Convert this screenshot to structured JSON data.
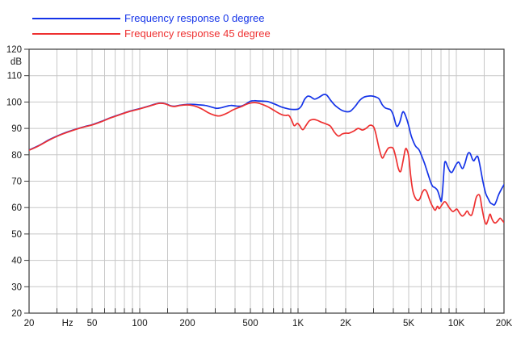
{
  "legend": {
    "items": [
      {
        "label": "Frequency response 0 degree",
        "color": "#1433e8"
      },
      {
        "label": "Frequency response 45 degree",
        "color": "#ee3030"
      }
    ]
  },
  "axes": {
    "y_unit": "dB",
    "x_unit": "Hz",
    "y_ticks": [
      120,
      110,
      100,
      90,
      80,
      70,
      60,
      50,
      40,
      30,
      20
    ],
    "x_labeled_ticks": [
      {
        "f": 20,
        "label": "20"
      },
      {
        "f": 50,
        "label": "50"
      },
      {
        "f": 100,
        "label": "100"
      },
      {
        "f": 200,
        "label": "200"
      },
      {
        "f": 500,
        "label": "500"
      },
      {
        "f": 1000,
        "label": "1K"
      },
      {
        "f": 2000,
        "label": "2K"
      },
      {
        "f": 5000,
        "label": "5K"
      },
      {
        "f": 10000,
        "label": "10K"
      },
      {
        "f": 20000,
        "label": "20K"
      }
    ],
    "x_unit_pos_hz": 35,
    "gridline_freqs": [
      20,
      30,
      40,
      50,
      60,
      70,
      80,
      90,
      100,
      150,
      200,
      300,
      400,
      500,
      600,
      700,
      800,
      900,
      1000,
      1500,
      2000,
      3000,
      4000,
      5000,
      6000,
      7000,
      8000,
      9000,
      10000,
      15000,
      20000
    ]
  },
  "colors": {
    "grid": "#c7c7c7",
    "border": "#3a3a3a",
    "tick": "#3a3a3a",
    "label": "#1a1a1a",
    "background": "#ffffff"
  },
  "chart_data": {
    "type": "line",
    "title": "",
    "xlabel": "Hz",
    "ylabel": "dB",
    "x_scale": "log",
    "xlim": [
      20,
      20000
    ],
    "ylim": [
      20,
      120
    ],
    "grid": true,
    "legend_position": "top-left",
    "series": [
      {
        "name": "Frequency response 0 degree",
        "color": "#1433e8",
        "points": [
          [
            20,
            81.8
          ],
          [
            23,
            83.5
          ],
          [
            27,
            85.8
          ],
          [
            32,
            87.8
          ],
          [
            38,
            89.4
          ],
          [
            45,
            90.7
          ],
          [
            50,
            91.4
          ],
          [
            57,
            92.6
          ],
          [
            65,
            94.0
          ],
          [
            75,
            95.3
          ],
          [
            85,
            96.4
          ],
          [
            100,
            97.5
          ],
          [
            110,
            98.2
          ],
          [
            120,
            98.9
          ],
          [
            128,
            99.4
          ],
          [
            135,
            99.6
          ],
          [
            145,
            99.4
          ],
          [
            155,
            98.7
          ],
          [
            165,
            98.4
          ],
          [
            180,
            98.8
          ],
          [
            200,
            99.1
          ],
          [
            220,
            99.1
          ],
          [
            240,
            98.9
          ],
          [
            260,
            98.7
          ],
          [
            280,
            98.2
          ],
          [
            300,
            97.7
          ],
          [
            310,
            97.6
          ],
          [
            330,
            97.9
          ],
          [
            355,
            98.4
          ],
          [
            375,
            98.7
          ],
          [
            395,
            98.6
          ],
          [
            420,
            98.4
          ],
          [
            440,
            98.5
          ],
          [
            470,
            99.3
          ],
          [
            500,
            100.3
          ],
          [
            530,
            100.5
          ],
          [
            560,
            100.4
          ],
          [
            600,
            100.3
          ],
          [
            640,
            100.2
          ],
          [
            680,
            99.7
          ],
          [
            720,
            99.1
          ],
          [
            780,
            98.2
          ],
          [
            830,
            97.7
          ],
          [
            880,
            97.3
          ],
          [
            930,
            97.2
          ],
          [
            1000,
            97.3
          ],
          [
            1050,
            98.5
          ],
          [
            1100,
            101.0
          ],
          [
            1150,
            102.2
          ],
          [
            1200,
            102.0
          ],
          [
            1270,
            101.1
          ],
          [
            1350,
            101.7
          ],
          [
            1450,
            102.8
          ],
          [
            1520,
            102.6
          ],
          [
            1600,
            100.8
          ],
          [
            1700,
            98.9
          ],
          [
            1800,
            97.7
          ],
          [
            1900,
            96.8
          ],
          [
            2050,
            96.3
          ],
          [
            2150,
            96.6
          ],
          [
            2300,
            98.4
          ],
          [
            2450,
            100.6
          ],
          [
            2600,
            101.8
          ],
          [
            2750,
            102.2
          ],
          [
            2900,
            102.3
          ],
          [
            3100,
            101.9
          ],
          [
            3250,
            101.2
          ],
          [
            3400,
            99.0
          ],
          [
            3550,
            97.8
          ],
          [
            3700,
            97.4
          ],
          [
            3850,
            97.0
          ],
          [
            4000,
            95.0
          ],
          [
            4150,
            91.5
          ],
          [
            4250,
            90.8
          ],
          [
            4400,
            92.5
          ],
          [
            4550,
            95.8
          ],
          [
            4650,
            96.2
          ],
          [
            4800,
            94.5
          ],
          [
            5000,
            91.0
          ],
          [
            5200,
            87.0
          ],
          [
            5500,
            83.5
          ],
          [
            5800,
            82.0
          ],
          [
            6000,
            80.0
          ],
          [
            6300,
            76.7
          ],
          [
            6600,
            73.0
          ],
          [
            6900,
            69.5
          ],
          [
            7100,
            68.0
          ],
          [
            7300,
            67.6
          ],
          [
            7600,
            66.5
          ],
          [
            7900,
            63.5
          ],
          [
            8050,
            62.5
          ],
          [
            8200,
            67.0
          ],
          [
            8400,
            76.0
          ],
          [
            8550,
            77.4
          ],
          [
            8800,
            75.6
          ],
          [
            9100,
            73.8
          ],
          [
            9400,
            73.4
          ],
          [
            9800,
            75.5
          ],
          [
            10100,
            76.8
          ],
          [
            10400,
            77.1
          ],
          [
            10900,
            74.8
          ],
          [
            11300,
            76.5
          ],
          [
            11800,
            80.3
          ],
          [
            12200,
            80.6
          ],
          [
            12600,
            78.5
          ],
          [
            12900,
            77.7
          ],
          [
            13300,
            79.0
          ],
          [
            13700,
            79.2
          ],
          [
            14200,
            75.0
          ],
          [
            14700,
            70.0
          ],
          [
            15300,
            65.5
          ],
          [
            15900,
            63.3
          ],
          [
            16400,
            61.8
          ],
          [
            16900,
            61.3
          ],
          [
            17400,
            61.0
          ],
          [
            17900,
            62.5
          ],
          [
            18500,
            64.9
          ],
          [
            19200,
            66.8
          ],
          [
            20000,
            68.7
          ]
        ]
      },
      {
        "name": "Frequency response 45 degree",
        "color": "#ee3030",
        "points": [
          [
            20,
            81.7
          ],
          [
            23,
            83.4
          ],
          [
            27,
            85.7
          ],
          [
            32,
            87.7
          ],
          [
            38,
            89.3
          ],
          [
            45,
            90.6
          ],
          [
            50,
            91.3
          ],
          [
            57,
            92.5
          ],
          [
            65,
            93.9
          ],
          [
            75,
            95.2
          ],
          [
            85,
            96.3
          ],
          [
            100,
            97.4
          ],
          [
            110,
            98.1
          ],
          [
            120,
            98.8
          ],
          [
            128,
            99.3
          ],
          [
            135,
            99.5
          ],
          [
            145,
            99.3
          ],
          [
            155,
            98.6
          ],
          [
            165,
            98.3
          ],
          [
            180,
            98.7
          ],
          [
            200,
            98.9
          ],
          [
            215,
            98.7
          ],
          [
            230,
            98.2
          ],
          [
            250,
            97.2
          ],
          [
            270,
            96.0
          ],
          [
            290,
            95.2
          ],
          [
            315,
            94.7
          ],
          [
            335,
            95.1
          ],
          [
            360,
            95.9
          ],
          [
            385,
            96.9
          ],
          [
            410,
            97.6
          ],
          [
            440,
            98.3
          ],
          [
            470,
            99.1
          ],
          [
            500,
            99.6
          ],
          [
            530,
            99.8
          ],
          [
            560,
            99.6
          ],
          [
            600,
            99.0
          ],
          [
            640,
            98.3
          ],
          [
            680,
            97.4
          ],
          [
            720,
            96.5
          ],
          [
            760,
            95.7
          ],
          [
            800,
            95.1
          ],
          [
            840,
            94.9
          ],
          [
            870,
            95.0
          ],
          [
            900,
            93.8
          ],
          [
            930,
            91.8
          ],
          [
            950,
            91.0
          ],
          [
            990,
            91.9
          ],
          [
            1020,
            91.2
          ],
          [
            1070,
            89.5
          ],
          [
            1120,
            91.0
          ],
          [
            1180,
            92.9
          ],
          [
            1250,
            93.4
          ],
          [
            1320,
            93.1
          ],
          [
            1400,
            92.4
          ],
          [
            1500,
            91.7
          ],
          [
            1600,
            90.9
          ],
          [
            1700,
            88.5
          ],
          [
            1800,
            87.1
          ],
          [
            1900,
            87.9
          ],
          [
            2000,
            88.2
          ],
          [
            2100,
            88.2
          ],
          [
            2250,
            89.0
          ],
          [
            2400,
            90.0
          ],
          [
            2550,
            89.4
          ],
          [
            2700,
            90.1
          ],
          [
            2850,
            91.2
          ],
          [
            3000,
            90.6
          ],
          [
            3100,
            88.0
          ],
          [
            3250,
            82.5
          ],
          [
            3400,
            78.8
          ],
          [
            3550,
            80.5
          ],
          [
            3700,
            82.4
          ],
          [
            3850,
            82.8
          ],
          [
            4000,
            82.3
          ],
          [
            4150,
            79.0
          ],
          [
            4300,
            74.8
          ],
          [
            4450,
            73.7
          ],
          [
            4600,
            77.5
          ],
          [
            4750,
            81.8
          ],
          [
            4850,
            82.2
          ],
          [
            5000,
            79.5
          ],
          [
            5150,
            72.0
          ],
          [
            5300,
            66.5
          ],
          [
            5450,
            64.2
          ],
          [
            5600,
            63.0
          ],
          [
            5750,
            62.7
          ],
          [
            5900,
            63.5
          ],
          [
            6100,
            65.8
          ],
          [
            6300,
            66.8
          ],
          [
            6500,
            66.0
          ],
          [
            6700,
            63.8
          ],
          [
            6900,
            61.8
          ],
          [
            7100,
            60.3
          ],
          [
            7350,
            59.0
          ],
          [
            7600,
            60.5
          ],
          [
            7800,
            59.6
          ],
          [
            8100,
            61.0
          ],
          [
            8400,
            62.2
          ],
          [
            8600,
            61.9
          ],
          [
            8900,
            60.5
          ],
          [
            9200,
            59.3
          ],
          [
            9500,
            58.5
          ],
          [
            9800,
            59.0
          ],
          [
            10100,
            59.4
          ],
          [
            10500,
            57.8
          ],
          [
            10900,
            56.8
          ],
          [
            11300,
            57.5
          ],
          [
            11700,
            58.7
          ],
          [
            12100,
            57.4
          ],
          [
            12500,
            57.2
          ],
          [
            12900,
            60.0
          ],
          [
            13300,
            63.5
          ],
          [
            13700,
            64.8
          ],
          [
            14100,
            64.3
          ],
          [
            14500,
            60.0
          ],
          [
            15000,
            55.5
          ],
          [
            15400,
            53.7
          ],
          [
            15800,
            55.0
          ],
          [
            16300,
            57.5
          ],
          [
            16700,
            56.0
          ],
          [
            17200,
            54.5
          ],
          [
            17700,
            54.2
          ],
          [
            18300,
            55.0
          ],
          [
            18900,
            56.0
          ],
          [
            19400,
            55.3
          ],
          [
            20000,
            54.3
          ]
        ]
      }
    ]
  }
}
